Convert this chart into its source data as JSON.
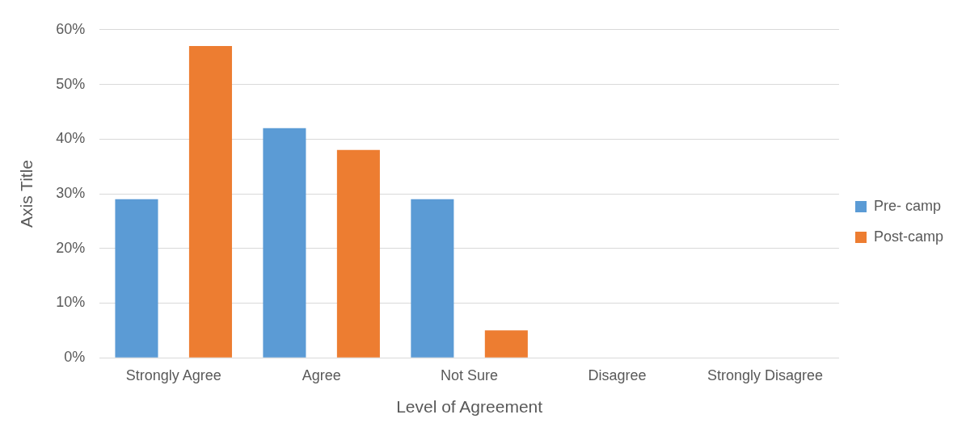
{
  "chart_data": {
    "type": "bar",
    "xlabel": "Level of Agreement",
    "ylabel": "Axis Title",
    "categories": [
      "Strongly Agree",
      "Agree",
      "Not Sure",
      "Disagree",
      "Strongly Disagree"
    ],
    "series": [
      {
        "name": "Pre- camp",
        "color": "#5b9bd5",
        "values": [
          29,
          42,
          29,
          0,
          0
        ]
      },
      {
        "name": "Post-camp",
        "color": "#ed7d31",
        "values": [
          57,
          38,
          5,
          0,
          0
        ]
      }
    ],
    "ylim": [
      0,
      60
    ],
    "yticks": [
      {
        "value": 0,
        "label": "0%"
      },
      {
        "value": 10,
        "label": "10%"
      },
      {
        "value": 20,
        "label": "20%"
      },
      {
        "value": 30,
        "label": "30%"
      },
      {
        "value": 40,
        "label": "40%"
      },
      {
        "value": 50,
        "label": "50%"
      },
      {
        "value": 60,
        "label": "60%"
      }
    ],
    "grid": "y",
    "legend": "right"
  }
}
